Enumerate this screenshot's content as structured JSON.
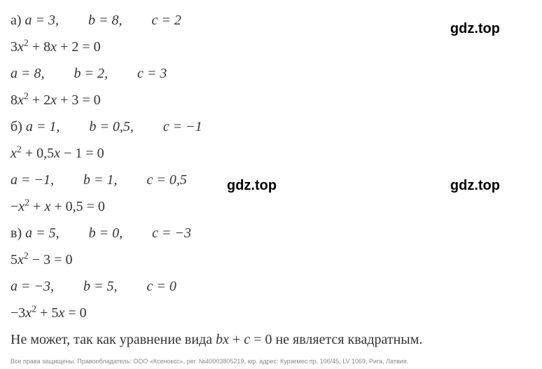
{
  "lines": {
    "l1_a": "а) ",
    "l1_eq1": "a = 3,",
    "l1_eq2": "b = 8,",
    "l1_eq3": "c = 2",
    "l2": "3x² + 8x + 2 = 0",
    "l3_eq1": "a = 8,",
    "l3_eq2": "b = 2,",
    "l3_eq3": "c = 3",
    "l4": "8x² + 2x + 3 = 0",
    "l5_a": "б) ",
    "l5_eq1": "a = 1,",
    "l5_eq2": "b = 0,5,",
    "l5_eq3": "c = −1",
    "l6": "x² + 0,5x − 1 = 0",
    "l7_eq1": "a = −1,",
    "l7_eq2": "b = 1,",
    "l7_eq3": "c = 0,5",
    "l8": "−x² + x + 0,5 = 0",
    "l9_a": "в) ",
    "l9_eq1": "a = 5,",
    "l9_eq2": "b = 0,",
    "l9_eq3": "c = −3",
    "l10": "5x² − 3 = 0",
    "l11_eq1": "a = −3,",
    "l11_eq2": "b = 5,",
    "l11_eq3": "c = 0",
    "l12": "−3x² + 5x = 0",
    "l13": "Не может, так как уравнение вида bx + c = 0 не является квадратным."
  },
  "watermarks": {
    "w1": "gdz.top",
    "w2": "gdz.top",
    "w3": "gdz.top"
  },
  "footer": "Все права защищены. Правообладатель: ООО «Ксеноксс», рег. №40003805219, юр. адрес: Курземес пр. 106/45, LV 1069, Рига, Латвия.",
  "colors": {
    "text": "#333333",
    "watermark": "#000000",
    "footer": "#888888",
    "background": "#ffffff"
  },
  "typography": {
    "main_fontsize": 20,
    "footer_fontsize": 9,
    "watermark_fontsize": 20,
    "line_height": 1.9
  }
}
